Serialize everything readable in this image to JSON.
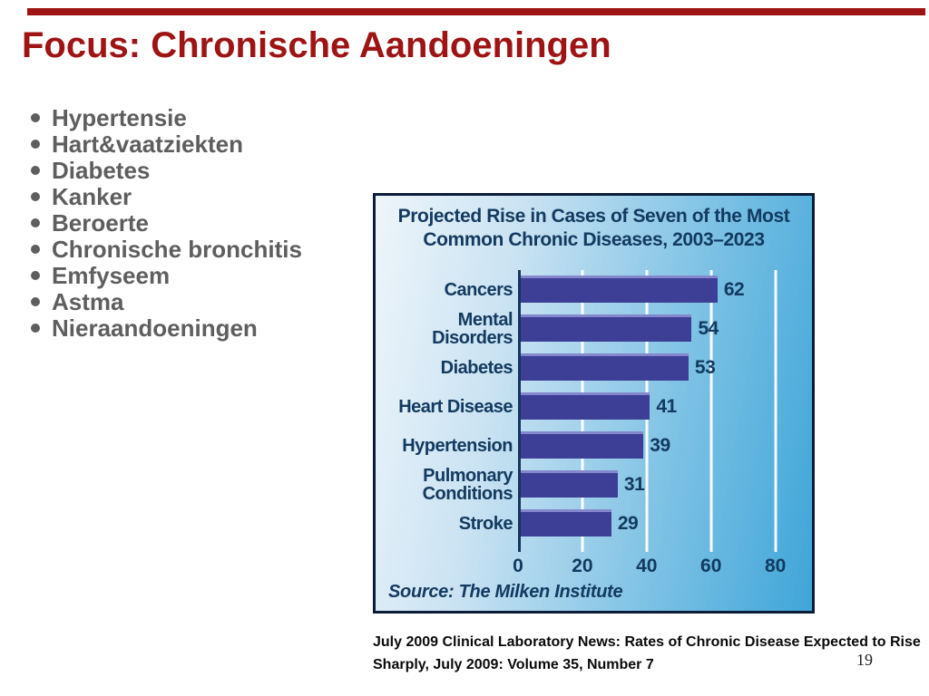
{
  "slide": {
    "title": "Focus: Chronische Aandoeningen",
    "accent_color": "#9E1414",
    "bullets": [
      "Hypertensie",
      "Hart&vaatziekten",
      "Diabetes",
      "Kanker",
      "Beroerte",
      "Chronische bronchitis",
      "Emfyseem",
      "Astma",
      "Nieraandoeningen"
    ],
    "caption_line1": "July 2009 Clinical Laboratory News: Rates of Chronic Disease Expected to Rise",
    "caption_line2": "Sharply, July 2009: Volume 35, Number 7",
    "page_number": "19"
  },
  "chart_data": {
    "type": "bar",
    "orientation": "horizontal",
    "title": "Projected Rise in Cases of Seven of the Most Common Chronic Diseases, 2003–2023",
    "title_lines": [
      "Projected Rise in Cases of Seven of the Most",
      "Common Chronic Diseases, 2003–2023"
    ],
    "categories": [
      "Cancers",
      "Mental\nDisorders",
      "Diabetes",
      "Heart Disease",
      "Hypertension",
      "Pulmonary\nConditions",
      "Stroke"
    ],
    "values": [
      62,
      54,
      53,
      41,
      39,
      31,
      29
    ],
    "x_ticks": [
      0,
      20,
      40,
      60,
      80
    ],
    "xlim": [
      0,
      88
    ],
    "grid": true,
    "gridline_color": "#FFFFFF",
    "bar_color": "#3D3F97",
    "text_color": "#133A60",
    "source": "Source: The Milken Institute"
  }
}
